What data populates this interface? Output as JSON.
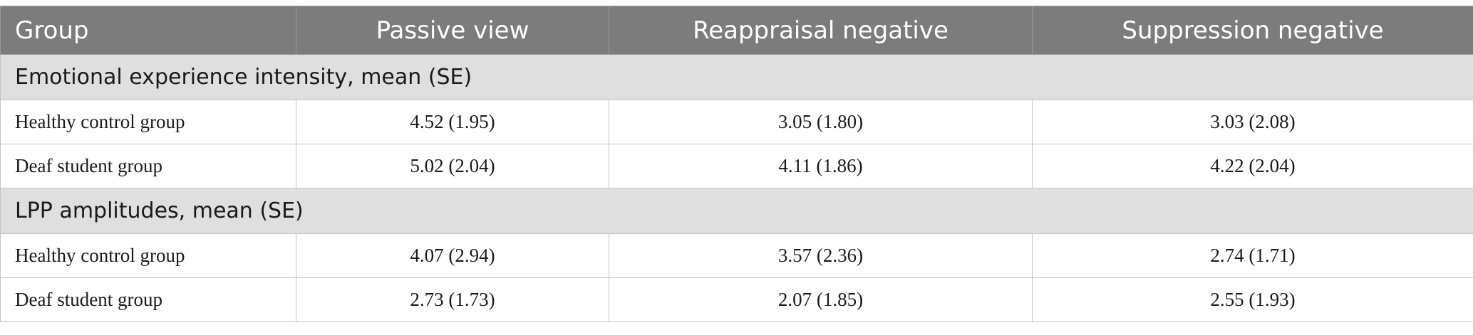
{
  "table": {
    "headers": [
      "Group",
      "Passive view",
      "Reappraisal negative",
      "Suppression negative"
    ],
    "sections": [
      {
        "title": "Emotional experience intensity, mean (SE)",
        "rows": [
          {
            "group": "Healthy control group",
            "passive": "4.52 (1.95)",
            "reappraisal": "3.05 (1.80)",
            "suppression": "3.03 (2.08)"
          },
          {
            "group": "Deaf student group",
            "passive": "5.02 (2.04)",
            "reappraisal": "4.11 (1.86)",
            "suppression": "4.22 (2.04)"
          }
        ]
      },
      {
        "title": "LPP amplitudes, mean (SE)",
        "rows": [
          {
            "group": "Healthy control group",
            "passive": "4.07 (2.94)",
            "reappraisal": "3.57 (2.36)",
            "suppression": "2.74 (1.71)"
          },
          {
            "group": "Deaf student group",
            "passive": "2.73 (1.73)",
            "reappraisal": "2.07 (1.85)",
            "suppression": "2.55 (1.93)"
          }
        ]
      }
    ]
  },
  "colors": {
    "header_bg": "#7b7c7b",
    "section_bg": "#e0dfdf",
    "border": "#c4c4c4"
  }
}
